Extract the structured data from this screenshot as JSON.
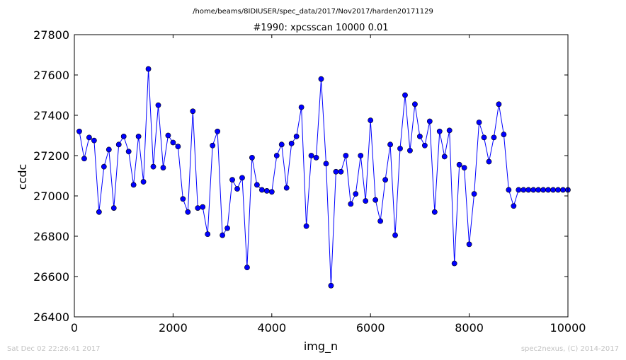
{
  "chart_data": {
    "type": "line",
    "suptitle": "/home/beams/8IDIUSER/spec_data/2017/Nov2017/harden20171129",
    "title": "#1990: xpcsscan 10000 0.01",
    "xlabel": "img_n",
    "ylabel": "ccdc",
    "xlim": [
      0,
      10000
    ],
    "ylim": [
      26400,
      27800
    ],
    "xticks": [
      0,
      2000,
      4000,
      6000,
      8000,
      10000
    ],
    "yticks": [
      26400,
      26600,
      26800,
      27000,
      27200,
      27400,
      27600,
      27800
    ],
    "line_color": "#0000ff",
    "marker_color": "#0000ff",
    "x": [
      100,
      200,
      300,
      400,
      500,
      600,
      700,
      800,
      900,
      1000,
      1100,
      1200,
      1300,
      1400,
      1500,
      1600,
      1700,
      1800,
      1900,
      2000,
      2100,
      2200,
      2300,
      2400,
      2500,
      2600,
      2700,
      2800,
      2900,
      3000,
      3100,
      3200,
      3300,
      3400,
      3500,
      3600,
      3700,
      3800,
      3900,
      4000,
      4100,
      4200,
      4300,
      4400,
      4500,
      4600,
      4700,
      4800,
      4900,
      5000,
      5100,
      5200,
      5300,
      5400,
      5500,
      5600,
      5700,
      5800,
      5900,
      6000,
      6100,
      6200,
      6300,
      6400,
      6500,
      6600,
      6700,
      6800,
      6900,
      7000,
      7100,
      7200,
      7300,
      7400,
      7500,
      7600,
      7700,
      7800,
      7900,
      8000,
      8100,
      8200,
      8300,
      8400,
      8500,
      8600,
      8700,
      8800,
      8900,
      9000,
      9100,
      9200,
      9300,
      9400,
      9500,
      9600,
      9700,
      9800,
      9900,
      10000
    ],
    "y": [
      27320,
      27185,
      27290,
      27275,
      26920,
      27145,
      27230,
      26940,
      27255,
      27295,
      27220,
      27055,
      27295,
      27070,
      27630,
      27145,
      27450,
      27140,
      27300,
      27265,
      27245,
      26985,
      26920,
      27420,
      26940,
      26945,
      26810,
      27250,
      27320,
      26805,
      26840,
      27080,
      27035,
      27090,
      26645,
      27190,
      27055,
      27030,
      27025,
      27020,
      27200,
      27255,
      27040,
      27260,
      27295,
      27440,
      26850,
      27200,
      27190,
      27580,
      27160,
      26555,
      27120,
      27120,
      27200,
      26960,
      27010,
      27200,
      26975,
      27375,
      26980,
      26875,
      27080,
      27255,
      26805,
      27235,
      27500,
      27225,
      27455,
      27295,
      27250,
      27370,
      26920,
      27320,
      27195,
      27325,
      26665,
      27155,
      27140,
      26760,
      27010,
      27365,
      27290,
      27170,
      27290,
      27455,
      27305,
      27030,
      26950,
      27030,
      27030,
      27030,
      27030,
      27030,
      27030,
      27030,
      27030,
      27030,
      27030,
      27030
    ]
  },
  "footer": {
    "timestamp": "Sat Dec 02 22:26:41 2017",
    "credit": "spec2nexus, (C) 2014-2017"
  }
}
